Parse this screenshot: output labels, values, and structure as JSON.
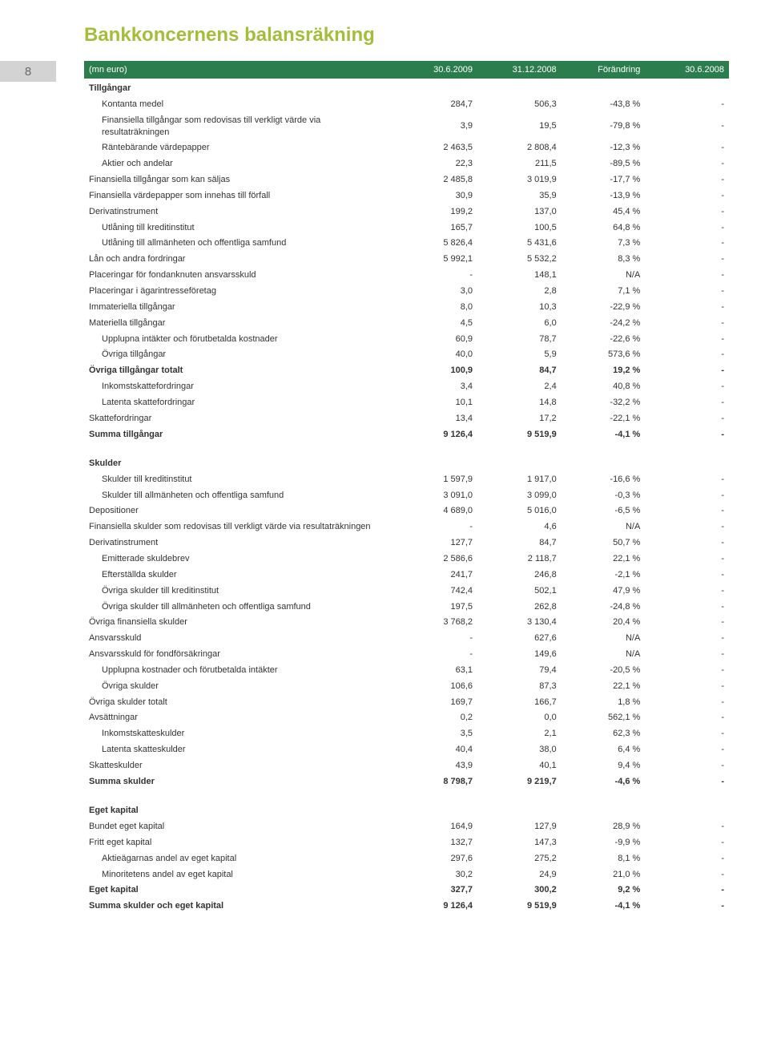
{
  "title": "Bankkoncernens balansräkning",
  "page_number": "8",
  "header": {
    "label": "(mn euro)",
    "col1": "30.6.2009",
    "col2": "31.12.2008",
    "col3": "Förändring",
    "col4": "30.6.2008"
  },
  "sections": [
    {
      "caption": "Tillgångar",
      "rows": [
        {
          "label": "Kontanta medel",
          "v1": "284,7",
          "v2": "506,3",
          "v3": "-43,8 %",
          "v4": "-",
          "indent": 1
        },
        {
          "label": "Finansiella tillgångar som redovisas till verkligt värde via resultaträkningen",
          "v1": "3,9",
          "v2": "19,5",
          "v3": "-79,8 %",
          "v4": "-",
          "indent": 1
        },
        {
          "label": "Räntebärande värdepapper",
          "v1": "2 463,5",
          "v2": "2 808,4",
          "v3": "-12,3 %",
          "v4": "-",
          "indent": 1
        },
        {
          "label": "Aktier och andelar",
          "v1": "22,3",
          "v2": "211,5",
          "v3": "-89,5 %",
          "v4": "-",
          "indent": 1
        },
        {
          "label": "Finansiella tillgångar som kan säljas",
          "v1": "2 485,8",
          "v2": "3 019,9",
          "v3": "-17,7 %",
          "v4": "-"
        },
        {
          "label": "Finansiella värdepapper som innehas till förfall",
          "v1": "30,9",
          "v2": "35,9",
          "v3": "-13,9 %",
          "v4": "-"
        },
        {
          "label": "Derivatinstrument",
          "v1": "199,2",
          "v2": "137,0",
          "v3": "45,4 %",
          "v4": "-"
        },
        {
          "label": "Utlåning till kreditinstitut",
          "v1": "165,7",
          "v2": "100,5",
          "v3": "64,8 %",
          "v4": "-",
          "indent": 1
        },
        {
          "label": "Utlåning till allmänheten och offentliga samfund",
          "v1": "5 826,4",
          "v2": "5 431,6",
          "v3": "7,3 %",
          "v4": "-",
          "indent": 1
        },
        {
          "label": "Lån och andra fordringar",
          "v1": "5 992,1",
          "v2": "5 532,2",
          "v3": "8,3 %",
          "v4": "-"
        },
        {
          "label": "Placeringar för fondanknuten ansvarsskuld",
          "v1": "-",
          "v2": "148,1",
          "v3": "N/A",
          "v4": "-"
        },
        {
          "label": "Placeringar i ägarintresseföretag",
          "v1": "3,0",
          "v2": "2,8",
          "v3": "7,1 %",
          "v4": "-"
        },
        {
          "label": "Immateriella tillgångar",
          "v1": "8,0",
          "v2": "10,3",
          "v3": "-22,9 %",
          "v4": "-"
        },
        {
          "label": "Materiella tillgångar",
          "v1": "4,5",
          "v2": "6,0",
          "v3": "-24,2 %",
          "v4": "-"
        },
        {
          "label": "Upplupna intäkter och förutbetalda kostnader",
          "v1": "60,9",
          "v2": "78,7",
          "v3": "-22,6 %",
          "v4": "-",
          "indent": 1
        },
        {
          "label": "Övriga tillgångar",
          "v1": "40,0",
          "v2": "5,9",
          "v3": "573,6 %",
          "v4": "-",
          "indent": 1
        },
        {
          "label": "Övriga tillgångar totalt",
          "v1": "100,9",
          "v2": "84,7",
          "v3": "19,2 %",
          "v4": "-",
          "bold": true
        },
        {
          "label": "Inkomstskattefordringar",
          "v1": "3,4",
          "v2": "2,4",
          "v3": "40,8 %",
          "v4": "-",
          "indent": 1
        },
        {
          "label": "Latenta skattefordringar",
          "v1": "10,1",
          "v2": "14,8",
          "v3": "-32,2 %",
          "v4": "-",
          "indent": 1
        },
        {
          "label": "Skattefordringar",
          "v1": "13,4",
          "v2": "17,2",
          "v3": "-22,1 %",
          "v4": "-"
        },
        {
          "label": "Summa tillgångar",
          "v1": "9 126,4",
          "v2": "9 519,9",
          "v3": "-4,1 %",
          "v4": "-",
          "bold": true
        }
      ]
    },
    {
      "caption": "Skulder",
      "rows": [
        {
          "label": "Skulder till kreditinstitut",
          "v1": "1 597,9",
          "v2": "1 917,0",
          "v3": "-16,6 %",
          "v4": "-",
          "indent": 1
        },
        {
          "label": "Skulder till allmänheten och offentliga samfund",
          "v1": "3 091,0",
          "v2": "3 099,0",
          "v3": "-0,3 %",
          "v4": "-",
          "indent": 1
        },
        {
          "label": "Depositioner",
          "v1": "4 689,0",
          "v2": "5 016,0",
          "v3": "-6,5 %",
          "v4": "-"
        },
        {
          "label": "Finansiella skulder som redovisas till verkligt värde via resultaträkningen",
          "v1": "-",
          "v2": "4,6",
          "v3": "N/A",
          "v4": "-"
        },
        {
          "label": "Derivatinstrument",
          "v1": "127,7",
          "v2": "84,7",
          "v3": "50,7 %",
          "v4": "-"
        },
        {
          "label": "Emitterade skuldebrev",
          "v1": "2 586,6",
          "v2": "2 118,7",
          "v3": "22,1 %",
          "v4": "-",
          "indent": 1
        },
        {
          "label": "Efterställda skulder",
          "v1": "241,7",
          "v2": "246,8",
          "v3": "-2,1 %",
          "v4": "-",
          "indent": 1
        },
        {
          "label": "Övriga skulder till kreditinstitut",
          "v1": "742,4",
          "v2": "502,1",
          "v3": "47,9 %",
          "v4": "-",
          "indent": 1
        },
        {
          "label": "Övriga skulder till allmänheten och offentliga samfund",
          "v1": "197,5",
          "v2": "262,8",
          "v3": "-24,8 %",
          "v4": "-",
          "indent": 1
        },
        {
          "label": "Övriga finansiella skulder",
          "v1": "3 768,2",
          "v2": "3 130,4",
          "v3": "20,4 %",
          "v4": "-"
        },
        {
          "label": "Ansvarsskuld",
          "v1": "-",
          "v2": "627,6",
          "v3": "N/A",
          "v4": "-"
        },
        {
          "label": "Ansvarsskuld för fondförsäkringar",
          "v1": "-",
          "v2": "149,6",
          "v3": "N/A",
          "v4": "-"
        },
        {
          "label": "Upplupna kostnader och förutbetalda intäkter",
          "v1": "63,1",
          "v2": "79,4",
          "v3": "-20,5 %",
          "v4": "-",
          "indent": 1
        },
        {
          "label": "Övriga skulder",
          "v1": "106,6",
          "v2": "87,3",
          "v3": "22,1 %",
          "v4": "-",
          "indent": 1
        },
        {
          "label": "Övriga skulder totalt",
          "v1": "169,7",
          "v2": "166,7",
          "v3": "1,8 %",
          "v4": "-"
        },
        {
          "label": "Avsättningar",
          "v1": "0,2",
          "v2": "0,0",
          "v3": "562,1 %",
          "v4": "-"
        },
        {
          "label": "Inkomstskatteskulder",
          "v1": "3,5",
          "v2": "2,1",
          "v3": "62,3 %",
          "v4": "-",
          "indent": 1
        },
        {
          "label": "Latenta skatteskulder",
          "v1": "40,4",
          "v2": "38,0",
          "v3": "6,4 %",
          "v4": "-",
          "indent": 1
        },
        {
          "label": "Skatteskulder",
          "v1": "43,9",
          "v2": "40,1",
          "v3": "9,4 %",
          "v4": "-"
        },
        {
          "label": "Summa skulder",
          "v1": "8 798,7",
          "v2": "9 219,7",
          "v3": "-4,6 %",
          "v4": "-",
          "bold": true
        }
      ]
    },
    {
      "caption": "Eget kapital",
      "rows": [
        {
          "label": "Bundet eget kapital",
          "v1": "164,9",
          "v2": "127,9",
          "v3": "28,9 %",
          "v4": "-"
        },
        {
          "label": "Fritt eget kapital",
          "v1": "132,7",
          "v2": "147,3",
          "v3": "-9,9 %",
          "v4": "-"
        },
        {
          "label": "Aktieägarnas andel av eget kapital",
          "v1": "297,6",
          "v2": "275,2",
          "v3": "8,1 %",
          "v4": "-",
          "indent": 1
        },
        {
          "label": "Minoritetens andel av eget kapital",
          "v1": "30,2",
          "v2": "24,9",
          "v3": "21,0 %",
          "v4": "-",
          "indent": 1
        },
        {
          "label": "Eget kapital",
          "v1": "327,7",
          "v2": "300,2",
          "v3": "9,2 %",
          "v4": "-",
          "bold": true
        },
        {
          "label": "Summa skulder och eget kapital",
          "v1": "9 126,4",
          "v2": "9 519,9",
          "v3": "-4,1 %",
          "v4": "-",
          "bold": true
        }
      ]
    }
  ],
  "styling": {
    "title_color": "#a4bd3a",
    "header_bg": "#2c7d4e",
    "header_fg": "#ffffff",
    "page_box_bg": "#d4d3d3",
    "page_box_fg": "#6b6a6a",
    "body_font_size": 11,
    "title_font_size": 24
  }
}
